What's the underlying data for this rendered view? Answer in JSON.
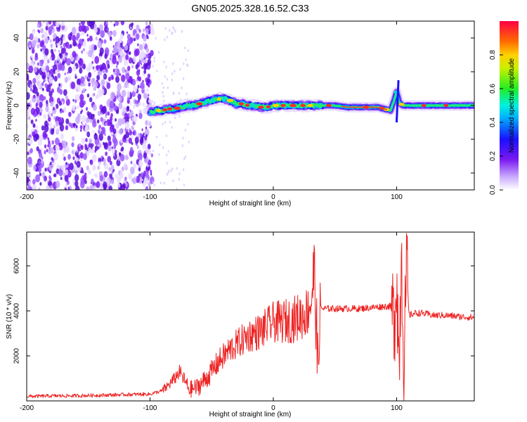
{
  "chart_data": [
    {
      "type": "heatmap",
      "title": "GN05.2025.328.16.52.C33",
      "xlabel": "Height of straight line (km)",
      "ylabel": "Frequency (Hz)",
      "xlim": [
        -200,
        163
      ],
      "ylim": [
        -50,
        50
      ],
      "xticks": [
        -200,
        -100,
        0,
        100
      ],
      "yticks": [
        -40,
        -20,
        0,
        20,
        40
      ],
      "colorbar": {
        "label": "Normalized spectral amplitude",
        "range": [
          0,
          1
        ],
        "ticks": [
          "0.0",
          "0.2",
          "0.4",
          "0.6",
          "0.8"
        ]
      },
      "series": [
        {
          "name": "signal ridge (peak frequency vs height)",
          "x": [
            -100,
            -95,
            -90,
            -85,
            -80,
            -75,
            -70,
            -65,
            -60,
            -55,
            -50,
            -45,
            -40,
            -35,
            -30,
            -25,
            -20,
            -15,
            -10,
            -5,
            0,
            5,
            10,
            20,
            30,
            40,
            50,
            60,
            70,
            80,
            85,
            90,
            95,
            98,
            100,
            102,
            105,
            110,
            120,
            130,
            140,
            150,
            163
          ],
          "y": [
            -4,
            -3,
            -3,
            -2,
            -2,
            -1,
            0,
            0,
            1,
            2,
            3,
            4,
            4,
            3,
            1,
            1,
            0,
            0,
            -1,
            -1,
            0,
            0,
            0,
            0,
            0,
            0,
            0,
            -1,
            -1,
            -1,
            -1,
            -2,
            -3,
            3,
            8,
            2,
            0,
            0,
            0,
            0,
            0,
            0,
            0
          ]
        }
      ]
    },
    {
      "type": "line",
      "title": "",
      "xlabel": "Height of straight line (km)",
      "ylabel": "SNR (10 * v/v)",
      "xlim": [
        -200,
        163
      ],
      "ylim": [
        0,
        7500
      ],
      "xticks": [
        -200,
        -100,
        0,
        100
      ],
      "yticks": [
        2000,
        4000,
        6000
      ],
      "color": "#ee2222",
      "series": [
        {
          "name": "SNR",
          "x": [
            -200,
            -180,
            -160,
            -140,
            -120,
            -100,
            -90,
            -85,
            -80,
            -76,
            -72,
            -68,
            -62,
            -56,
            -50,
            -45,
            -40,
            -35,
            -30,
            -25,
            -20,
            -15,
            -10,
            -5,
            0,
            5,
            10,
            15,
            20,
            25,
            28,
            31,
            33,
            35,
            36,
            38,
            40,
            50,
            60,
            70,
            80,
            90,
            95,
            98,
            100,
            102,
            104,
            106,
            108,
            110,
            115,
            120,
            130,
            140,
            150,
            163
          ],
          "y": [
            200,
            220,
            230,
            250,
            280,
            300,
            450,
            700,
            1000,
            1300,
            900,
            500,
            600,
            900,
            1300,
            1700,
            2000,
            2300,
            2500,
            2700,
            2900,
            3000,
            3100,
            3300,
            3500,
            3500,
            3550,
            3600,
            3700,
            3850,
            4000,
            4600,
            5800,
            3500,
            1000,
            4200,
            4100,
            4100,
            4100,
            4100,
            4150,
            4200,
            4200,
            3500,
            5800,
            1500,
            7200,
            900,
            6200,
            3800,
            3900,
            3900,
            3800,
            3800,
            3750,
            3700
          ]
        }
      ]
    }
  ]
}
